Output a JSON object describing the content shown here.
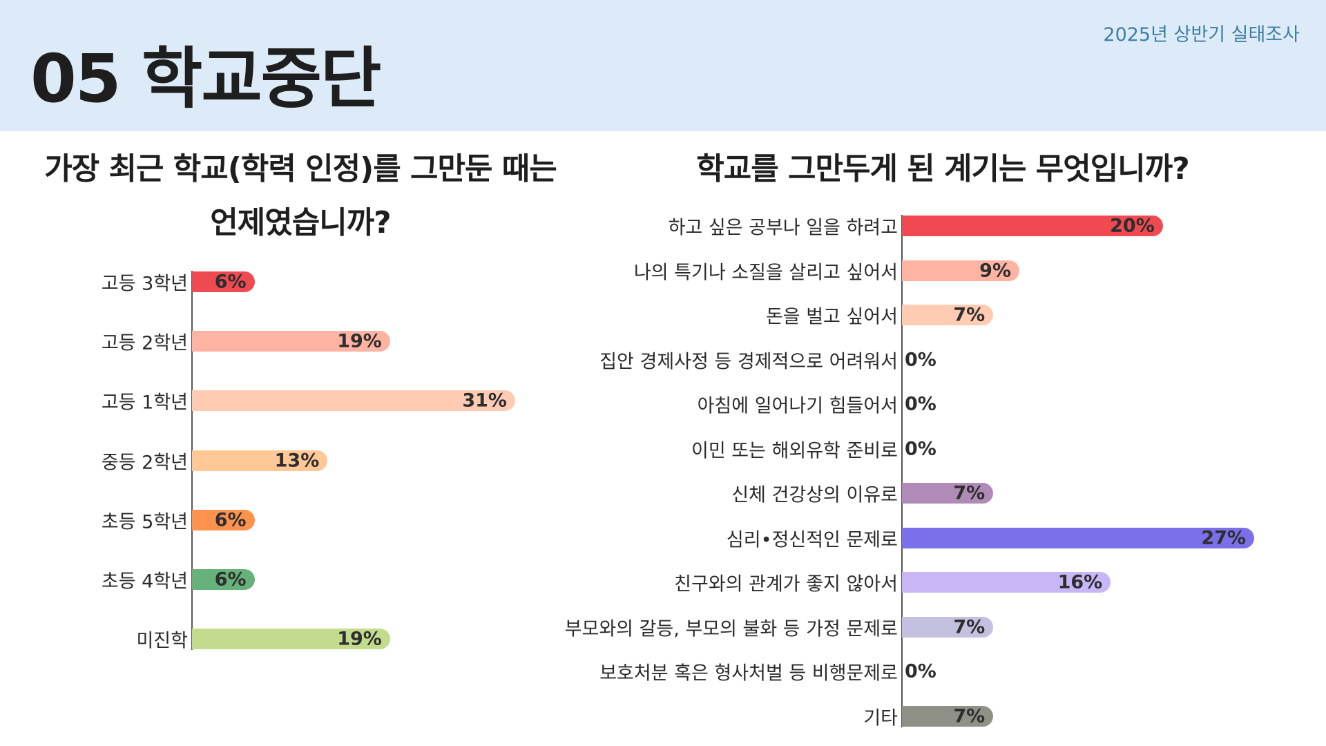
{
  "header": {
    "title": "05 학교중단",
    "survey_label": "2025년 상반기 실태조사"
  },
  "chart_data": [
    {
      "type": "bar",
      "orientation": "horizontal",
      "title": "가장 최근 학교(학력 인정)를 그만둔 때는 언제였습니까?",
      "unit": "%",
      "xlim": [
        0,
        31
      ],
      "grid": false,
      "categories": [
        "고등 3학년",
        "고등 2학년",
        "고등 1학년",
        "중등 2학년",
        "초등 5학년",
        "초등 4학년",
        "미진학"
      ],
      "values": [
        6,
        19,
        31,
        13,
        6,
        6,
        19
      ],
      "colors": [
        "#ef4a52",
        "#ffb3a3",
        "#ffcbb2",
        "#ffc896",
        "#ff934d",
        "#66b27a",
        "#c2db8c"
      ]
    },
    {
      "type": "bar",
      "orientation": "horizontal",
      "title": "학교를 그만두게 된 계기는 무엇입니까?",
      "unit": "%",
      "xlim": [
        0,
        27
      ],
      "grid": false,
      "categories": [
        "하고 싶은 공부나 일을 하려고",
        "나의 특기나 소질을 살리고 싶어서",
        "돈을 벌고 싶어서",
        "집안 경제사정 등 경제적으로 어려워서",
        "아침에 일어나기 힘들어서",
        "이민 또는 해외유학 준비로",
        "신체 건강상의 이유로",
        "심리•정신적인 문제로",
        "친구와의 관계가 좋지 않아서",
        "부모와의 갈등, 부모의 불화 등 가정 문제로",
        "보호처분 혹은 형사처벌 등 비행문제로",
        "기타"
      ],
      "values": [
        20,
        9,
        7,
        0,
        0,
        0,
        7,
        27,
        16,
        7,
        0,
        7
      ],
      "colors": [
        "#ef4a52",
        "#ffb3a3",
        "#ffcbb2",
        "#dddddd",
        "#dddddd",
        "#dddddd",
        "#b08bb8",
        "#7b6fea",
        "#c8b6f6",
        "#c4c0e0",
        "#dddddd",
        "#8f9186"
      ]
    }
  ]
}
